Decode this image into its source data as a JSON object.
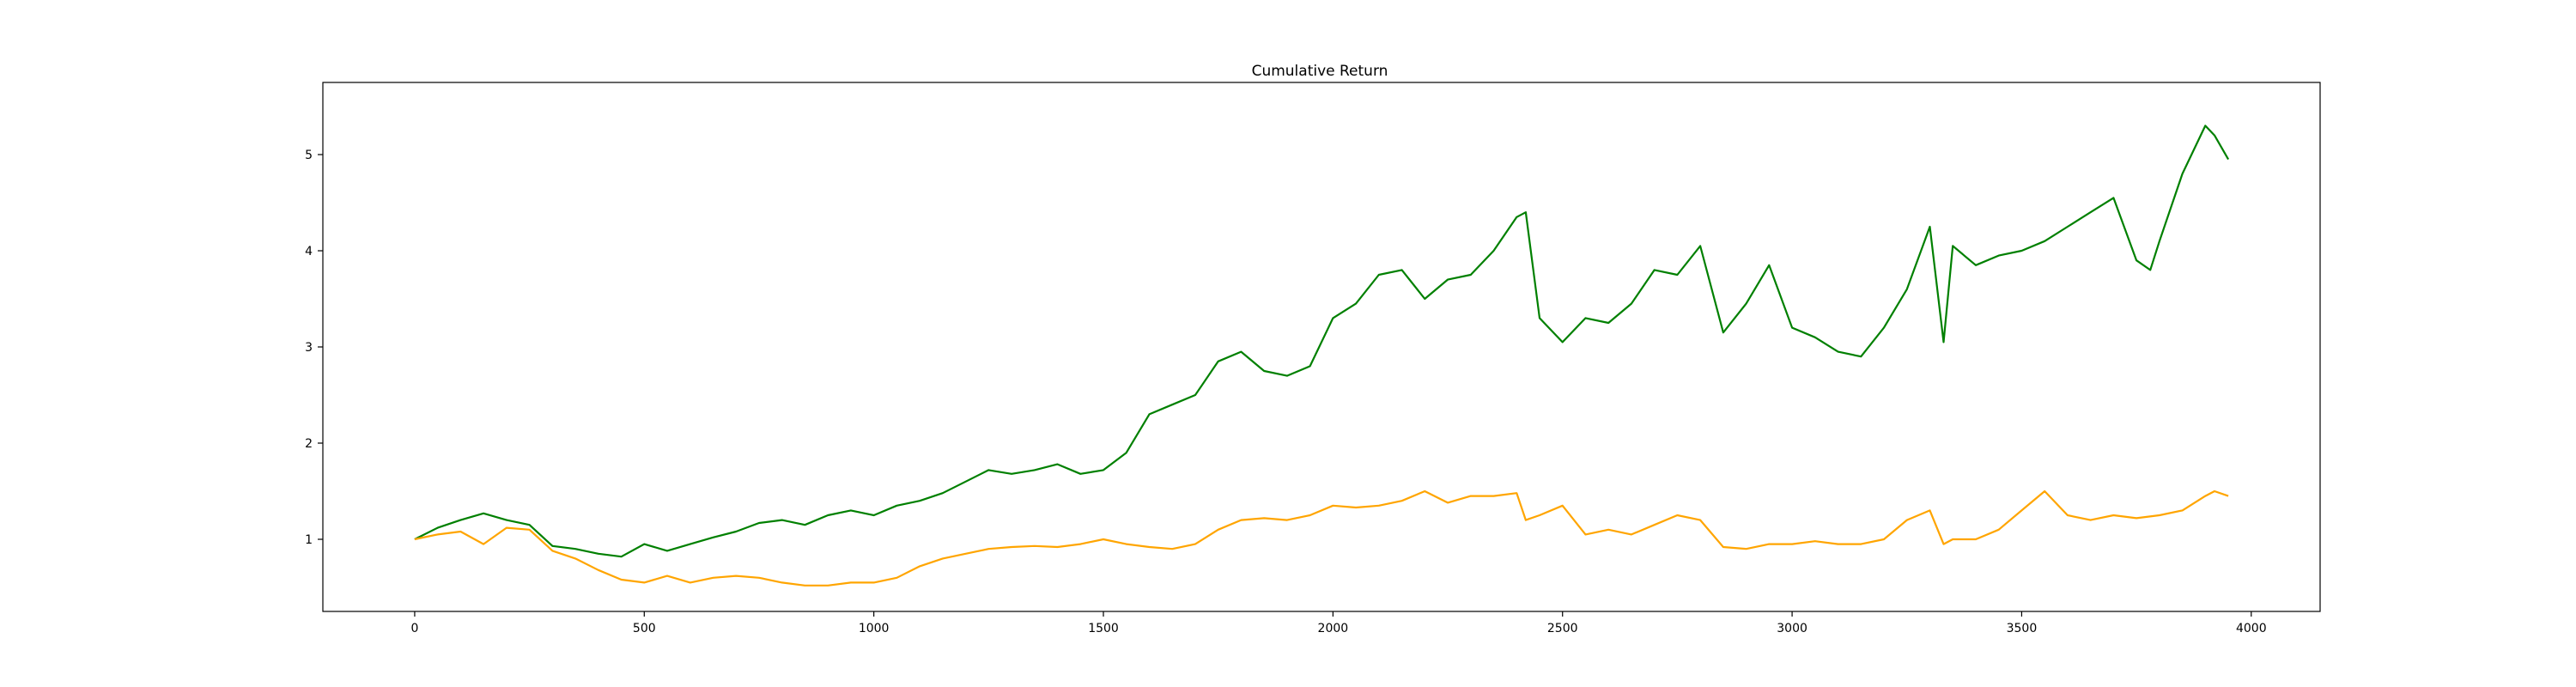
{
  "chart_data": {
    "type": "line",
    "title": "Cumulative Return",
    "xlabel": "",
    "ylabel": "",
    "xlim": [
      -200,
      4150
    ],
    "ylim": [
      0.25,
      5.75
    ],
    "xticks": [
      0,
      500,
      1000,
      1500,
      2000,
      2500,
      3000,
      3500,
      4000
    ],
    "yticks": [
      1,
      2,
      3,
      4,
      5
    ],
    "grid": false,
    "legend": "none",
    "series": [
      {
        "color": "#008000",
        "x": [
          0,
          50,
          100,
          150,
          200,
          250,
          300,
          350,
          400,
          450,
          500,
          550,
          600,
          650,
          700,
          750,
          800,
          850,
          900,
          950,
          1000,
          1050,
          1100,
          1150,
          1200,
          1250,
          1300,
          1350,
          1400,
          1450,
          1500,
          1550,
          1600,
          1650,
          1700,
          1750,
          1800,
          1850,
          1900,
          1950,
          2000,
          2050,
          2100,
          2150,
          2200,
          2250,
          2300,
          2350,
          2400,
          2420,
          2450,
          2500,
          2550,
          2600,
          2650,
          2700,
          2750,
          2800,
          2850,
          2900,
          2950,
          3000,
          3050,
          3100,
          3150,
          3200,
          3250,
          3300,
          3330,
          3350,
          3400,
          3450,
          3500,
          3550,
          3600,
          3650,
          3700,
          3750,
          3780,
          3800,
          3850,
          3900,
          3920,
          3950
        ],
        "values": [
          1.0,
          1.12,
          1.2,
          1.27,
          1.2,
          1.15,
          0.93,
          0.9,
          0.85,
          0.82,
          0.95,
          0.88,
          0.95,
          1.02,
          1.08,
          1.17,
          1.2,
          1.15,
          1.25,
          1.3,
          1.25,
          1.35,
          1.4,
          1.48,
          1.6,
          1.72,
          1.68,
          1.72,
          1.78,
          1.68,
          1.72,
          1.9,
          2.3,
          2.4,
          2.5,
          2.85,
          2.95,
          2.75,
          2.7,
          2.8,
          3.3,
          3.45,
          3.75,
          3.8,
          3.5,
          3.7,
          3.75,
          4.0,
          4.35,
          4.4,
          3.3,
          3.05,
          3.3,
          3.25,
          3.45,
          3.8,
          3.75,
          4.05,
          3.15,
          3.45,
          3.85,
          3.2,
          3.1,
          2.95,
          2.9,
          3.2,
          3.6,
          4.25,
          3.05,
          4.05,
          3.85,
          3.95,
          4.0,
          4.1,
          4.25,
          4.4,
          4.55,
          3.9,
          3.8,
          4.1,
          4.8,
          5.3,
          5.2,
          4.95
        ]
      },
      {
        "color": "#FFA500",
        "x": [
          0,
          50,
          100,
          150,
          200,
          250,
          300,
          350,
          400,
          450,
          500,
          550,
          600,
          650,
          700,
          750,
          800,
          850,
          900,
          950,
          1000,
          1050,
          1100,
          1150,
          1200,
          1250,
          1300,
          1350,
          1400,
          1450,
          1500,
          1550,
          1600,
          1650,
          1700,
          1750,
          1800,
          1850,
          1900,
          1950,
          2000,
          2050,
          2100,
          2150,
          2200,
          2250,
          2300,
          2350,
          2400,
          2420,
          2450,
          2500,
          2550,
          2600,
          2650,
          2700,
          2750,
          2800,
          2850,
          2900,
          2950,
          3000,
          3050,
          3100,
          3150,
          3200,
          3250,
          3300,
          3330,
          3350,
          3400,
          3450,
          3500,
          3550,
          3600,
          3650,
          3700,
          3750,
          3800,
          3850,
          3900,
          3920,
          3950
        ],
        "values": [
          1.0,
          1.05,
          1.08,
          0.95,
          1.12,
          1.1,
          0.88,
          0.8,
          0.68,
          0.58,
          0.55,
          0.62,
          0.55,
          0.6,
          0.62,
          0.6,
          0.55,
          0.52,
          0.52,
          0.55,
          0.55,
          0.6,
          0.72,
          0.8,
          0.85,
          0.9,
          0.92,
          0.93,
          0.92,
          0.95,
          1.0,
          0.95,
          0.92,
          0.9,
          0.95,
          1.1,
          1.2,
          1.22,
          1.2,
          1.25,
          1.35,
          1.33,
          1.35,
          1.4,
          1.5,
          1.38,
          1.45,
          1.45,
          1.48,
          1.2,
          1.25,
          1.35,
          1.05,
          1.1,
          1.05,
          1.15,
          1.25,
          1.2,
          0.92,
          0.9,
          0.95,
          0.95,
          0.98,
          0.95,
          0.95,
          1.0,
          1.2,
          1.3,
          0.95,
          1.0,
          1.0,
          1.1,
          1.3,
          1.5,
          1.25,
          1.2,
          1.25,
          1.22,
          1.25,
          1.3,
          1.45,
          1.5,
          1.45
        ]
      }
    ]
  }
}
